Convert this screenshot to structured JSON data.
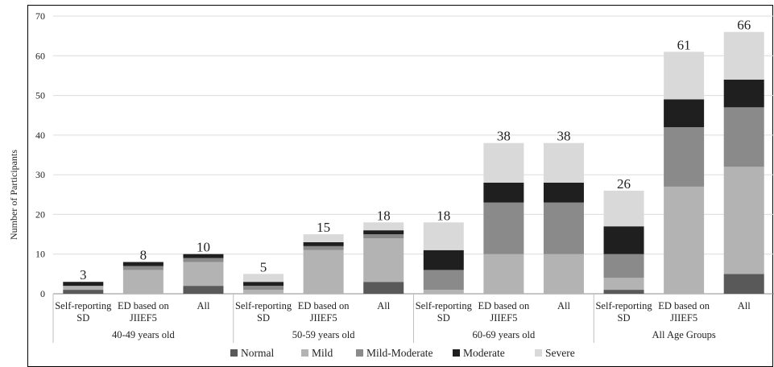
{
  "chart_data": {
    "type": "bar",
    "stacked": true,
    "ylabel": "Number of Participants",
    "ylim": [
      0,
      70
    ],
    "yticks": [
      0,
      10,
      20,
      30,
      40,
      50,
      60,
      70
    ],
    "grid": true,
    "legend_position": "bottom",
    "groups": [
      {
        "label": "40-49 years old",
        "categories": [
          {
            "line1": "Self-reporting",
            "line2": "SD"
          },
          {
            "line1": "ED based on",
            "line2": "JIIEF5"
          },
          {
            "line1": "All",
            "line2": ""
          }
        ]
      },
      {
        "label": "50-59 years old",
        "categories": [
          {
            "line1": "Self-reporting",
            "line2": "SD"
          },
          {
            "line1": "ED based on",
            "line2": "JIIEF5"
          },
          {
            "line1": "All",
            "line2": ""
          }
        ]
      },
      {
        "label": "60-69 years old",
        "categories": [
          {
            "line1": "Self-reporting",
            "line2": "SD"
          },
          {
            "line1": "ED based on",
            "line2": "JIIEF5"
          },
          {
            "line1": "All",
            "line2": ""
          }
        ]
      },
      {
        "label": "All Age Groups",
        "categories": [
          {
            "line1": "Self-reporting",
            "line2": "SD"
          },
          {
            "line1": "ED based on",
            "line2": "JIIEF5"
          },
          {
            "line1": "All",
            "line2": ""
          }
        ]
      }
    ],
    "series": [
      {
        "name": "Normal",
        "color": "#595959",
        "values": [
          1,
          0,
          2,
          0,
          0,
          3,
          0,
          0,
          0,
          1,
          0,
          5
        ]
      },
      {
        "name": "Mild",
        "color": "#b3b3b3",
        "values": [
          1,
          6,
          6,
          1,
          11,
          11,
          1,
          10,
          10,
          3,
          27,
          27
        ]
      },
      {
        "name": "Mild-Moderate",
        "color": "#8a8a8a",
        "values": [
          0,
          1,
          1,
          1,
          1,
          1,
          5,
          13,
          13,
          6,
          15,
          15
        ]
      },
      {
        "name": "Moderate",
        "color": "#1f1f1f",
        "values": [
          1,
          1,
          1,
          1,
          1,
          1,
          5,
          5,
          5,
          7,
          7,
          7
        ]
      },
      {
        "name": "Severe",
        "color": "#d9d9d9",
        "values": [
          0,
          0,
          0,
          2,
          2,
          2,
          7,
          10,
          10,
          9,
          12,
          12
        ]
      }
    ],
    "totals": [
      "3",
      "8",
      "10",
      "5",
      "15",
      "18",
      "18",
      "38",
      "38",
      "26",
      "61",
      "66"
    ]
  }
}
